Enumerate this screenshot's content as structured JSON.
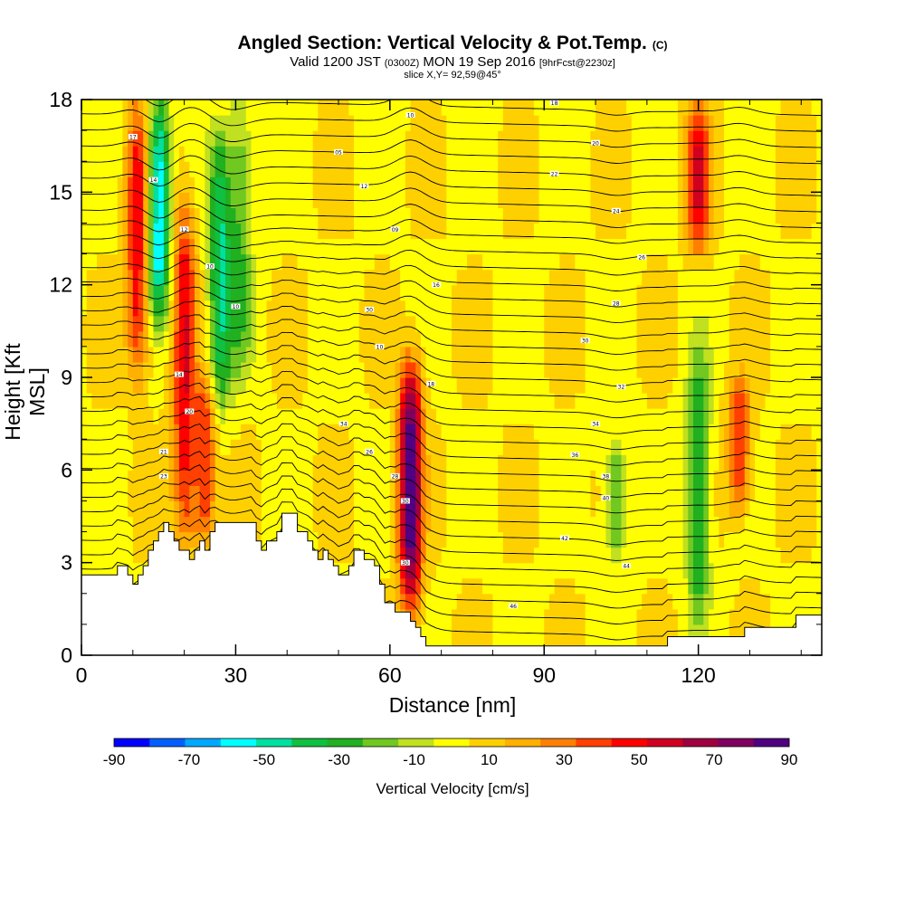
{
  "title": {
    "main": "Angled Section: Vertical Velocity & Pot.Temp.",
    "unit_mark": "(C)",
    "valid_prefix": "Valid 1200 JST",
    "valid_utc": "(0300Z)",
    "valid_date": "MON 19 Sep 2016",
    "forecast": "[9hrFcst@2230z]",
    "slice": "slice X,Y= 92,59@45°"
  },
  "chart_data": {
    "type": "heatmap",
    "xlabel": "Distance [nm]",
    "ylabel": "Height [Kft MSL]",
    "xlim": [
      0,
      144
    ],
    "ylim": [
      0,
      18
    ],
    "x_ticks": [
      0,
      30,
      60,
      90,
      120
    ],
    "y_ticks": [
      0,
      3,
      6,
      9,
      12,
      15,
      18
    ],
    "colorbar": {
      "label": "Vertical Velocity [cm/s]",
      "tick_labels": [
        -90,
        -70,
        -50,
        -30,
        -10,
        10,
        30,
        50,
        70,
        90
      ],
      "colors": [
        "#0000ff",
        "#0060ff",
        "#00a8ff",
        "#00ffff",
        "#00e0a0",
        "#10c040",
        "#20b020",
        "#70c820",
        "#c0e020",
        "#ffff00",
        "#ffd000",
        "#ffb000",
        "#ff8000",
        "#ff4000",
        "#ff0000",
        "#d00020",
        "#a00040",
        "#800060",
        "#500080"
      ]
    },
    "updraft_cores": [
      {
        "x": 11,
        "zmin": 9,
        "zmax": 18,
        "w": 50
      },
      {
        "x": 20,
        "zmin": 3.5,
        "zmax": 15,
        "w": 50
      },
      {
        "x": 24,
        "zmin": 3.4,
        "zmax": 9,
        "w": 40
      },
      {
        "x": 64,
        "zmin": 1.5,
        "zmax": 9.5,
        "w": 90
      },
      {
        "x": 120,
        "zmin": 13,
        "zmax": 18,
        "w": 50
      },
      {
        "x": 128,
        "zmin": 4.5,
        "zmax": 9,
        "w": 40
      }
    ],
    "downdraft_cores": [
      {
        "x": 15,
        "zmin": 11,
        "zmax": 18,
        "w": -70
      },
      {
        "x": 27,
        "zmin": 8,
        "zmax": 17,
        "w": -50
      },
      {
        "x": 31,
        "zmin": 9,
        "zmax": 18,
        "w": -30
      },
      {
        "x": 120,
        "zmin": 1,
        "zmax": 10,
        "w": -40
      },
      {
        "x": 104,
        "zmin": 3,
        "zmax": 7,
        "w": -30
      }
    ],
    "terrain_kft": [
      [
        0,
        2.6
      ],
      [
        6,
        2.6
      ],
      [
        7,
        2.9
      ],
      [
        9,
        2.6
      ],
      [
        10,
        2.3
      ],
      [
        11,
        2.6
      ],
      [
        12,
        2.9
      ],
      [
        13,
        3.4
      ],
      [
        14,
        3.7
      ],
      [
        15,
        4.0
      ],
      [
        16,
        4.3
      ],
      [
        17,
        4.0
      ],
      [
        18,
        3.7
      ],
      [
        19,
        3.4
      ],
      [
        20,
        3.4
      ],
      [
        21,
        3.1
      ],
      [
        22,
        3.4
      ],
      [
        23,
        3.7
      ],
      [
        24,
        3.4
      ],
      [
        25,
        4.0
      ],
      [
        26,
        4.3
      ],
      [
        33,
        4.3
      ],
      [
        34,
        3.7
      ],
      [
        35,
        3.4
      ],
      [
        36,
        3.7
      ],
      [
        38,
        4.0
      ],
      [
        39,
        4.6
      ],
      [
        41,
        4.6
      ],
      [
        42,
        4.0
      ],
      [
        44,
        3.7
      ],
      [
        45,
        3.4
      ],
      [
        46,
        3.1
      ],
      [
        47,
        3.4
      ],
      [
        48,
        3.1
      ],
      [
        49,
        2.9
      ],
      [
        50,
        2.6
      ],
      [
        52,
        2.9
      ],
      [
        53,
        3.4
      ],
      [
        54,
        3.4
      ],
      [
        55,
        3.1
      ],
      [
        56,
        3.1
      ],
      [
        57,
        2.9
      ],
      [
        58,
        2.3
      ],
      [
        59,
        1.7
      ],
      [
        60,
        1.7
      ],
      [
        61,
        1.4
      ],
      [
        62,
        1.4
      ],
      [
        64,
        1.1
      ],
      [
        65,
        0.9
      ],
      [
        66,
        0.6
      ],
      [
        67,
        0.3
      ],
      [
        113,
        0.3
      ],
      [
        114,
        0.6
      ],
      [
        128,
        0.6
      ],
      [
        129,
        0.9
      ],
      [
        138,
        0.9
      ],
      [
        139,
        1.3
      ],
      [
        144,
        1.3
      ]
    ],
    "isentrope_labels": [
      {
        "x": 10,
        "z": 16.8,
        "text": "17"
      },
      {
        "x": 14,
        "z": 15.4,
        "text": "14"
      },
      {
        "x": 20,
        "z": 13.8,
        "text": "12"
      },
      {
        "x": 25,
        "z": 12.6,
        "text": "10"
      },
      {
        "x": 30,
        "z": 11.3,
        "text": "10"
      },
      {
        "x": 19,
        "z": 9.1,
        "text": "14"
      },
      {
        "x": 21,
        "z": 7.9,
        "text": "20"
      },
      {
        "x": 16,
        "z": 6.6,
        "text": "21"
      },
      {
        "x": 16,
        "z": 5.8,
        "text": "23"
      },
      {
        "x": 64,
        "z": 17.5,
        "text": "10"
      },
      {
        "x": 50,
        "z": 16.3,
        "text": "05"
      },
      {
        "x": 55,
        "z": 15.2,
        "text": "12"
      },
      {
        "x": 61,
        "z": 13.8,
        "text": "09"
      },
      {
        "x": 69,
        "z": 12.0,
        "text": "16"
      },
      {
        "x": 56,
        "z": 11.2,
        "text": "30"
      },
      {
        "x": 58,
        "z": 10.0,
        "text": "10"
      },
      {
        "x": 68,
        "z": 8.8,
        "text": "18"
      },
      {
        "x": 51,
        "z": 7.5,
        "text": "34"
      },
      {
        "x": 56,
        "z": 6.6,
        "text": "26"
      },
      {
        "x": 61,
        "z": 5.8,
        "text": "28"
      },
      {
        "x": 63,
        "z": 5.0,
        "text": "30"
      },
      {
        "x": 63,
        "z": 3.0,
        "text": "30"
      },
      {
        "x": 92,
        "z": 17.9,
        "text": "18"
      },
      {
        "x": 100,
        "z": 16.6,
        "text": "20"
      },
      {
        "x": 92,
        "z": 15.6,
        "text": "22"
      },
      {
        "x": 104,
        "z": 14.4,
        "text": "24"
      },
      {
        "x": 109,
        "z": 12.9,
        "text": "26"
      },
      {
        "x": 104,
        "z": 11.4,
        "text": "28"
      },
      {
        "x": 98,
        "z": 10.2,
        "text": "30"
      },
      {
        "x": 105,
        "z": 8.7,
        "text": "32"
      },
      {
        "x": 100,
        "z": 7.5,
        "text": "34"
      },
      {
        "x": 96,
        "z": 6.5,
        "text": "36"
      },
      {
        "x": 102,
        "z": 5.8,
        "text": "38"
      },
      {
        "x": 102,
        "z": 5.1,
        "text": "40"
      },
      {
        "x": 94,
        "z": 3.8,
        "text": "42"
      },
      {
        "x": 106,
        "z": 2.9,
        "text": "44"
      },
      {
        "x": 84,
        "z": 1.6,
        "text": "46"
      }
    ]
  }
}
